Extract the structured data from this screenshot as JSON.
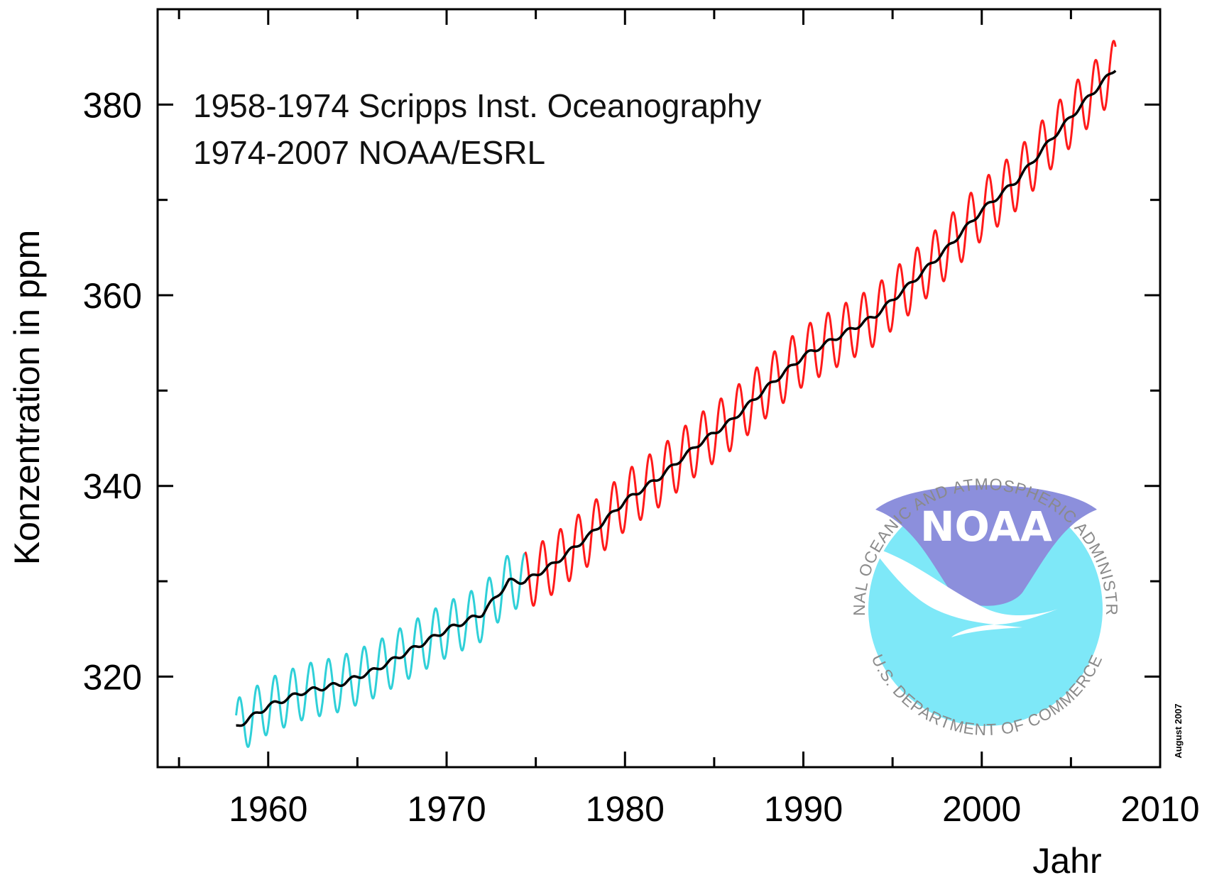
{
  "chart_data": {
    "type": "line",
    "xlabel": "Jahr",
    "ylabel": "Konzentration in ppm",
    "xlim": [
      1953.8,
      2010
    ],
    "ylim": [
      310.5,
      390
    ],
    "x_ticks": [
      1960,
      1970,
      1980,
      1990,
      2000,
      2010
    ],
    "y_ticks": [
      320,
      340,
      360,
      380
    ],
    "grid": false,
    "annotations": [
      "1958-1974 Scripps Inst. Oceanography",
      "1974-2007 NOAA/ESRL"
    ],
    "stamp": "August 2007",
    "series": [
      {
        "id": "scripps",
        "color": "#2fd0d8",
        "x_range": [
          1958.2,
          1974.4
        ],
        "trend_points": [
          [
            1958.2,
            314.7
          ],
          [
            1960,
            316.9
          ],
          [
            1962,
            318.4
          ],
          [
            1964,
            319.2
          ],
          [
            1966,
            320.7
          ],
          [
            1968,
            322.8
          ],
          [
            1970,
            324.9
          ],
          [
            1972,
            326.6
          ],
          [
            1973.5,
            330.0
          ],
          [
            1974.4,
            330.0
          ]
        ],
        "seasonal_amplitude": 2.9
      },
      {
        "id": "noaa",
        "color": "#ff1a1a",
        "x_range": [
          1974.4,
          2007.5
        ],
        "trend_points": [
          [
            1974.4,
            330.0
          ],
          [
            1976,
            331.8
          ],
          [
            1978,
            334.8
          ],
          [
            1980,
            338.4
          ],
          [
            1982,
            341.0
          ],
          [
            1984,
            344.2
          ],
          [
            1986,
            346.9
          ],
          [
            1988,
            350.4
          ],
          [
            1990,
            353.6
          ],
          [
            1992,
            355.7
          ],
          [
            1994,
            357.8
          ],
          [
            1996,
            361.2
          ],
          [
            1998,
            364.8
          ],
          [
            2000,
            368.9
          ],
          [
            2002,
            372.1
          ],
          [
            2004,
            376.6
          ],
          [
            2006,
            380.8
          ],
          [
            2007.5,
            383.8
          ]
        ],
        "seasonal_amplitude": 3.1
      },
      {
        "id": "trend",
        "color": "#000000",
        "x_range": [
          1958.2,
          2007.5
        ],
        "points": [
          [
            1958.2,
            314.7
          ],
          [
            1960,
            316.9
          ],
          [
            1962,
            318.4
          ],
          [
            1964,
            319.2
          ],
          [
            1966,
            320.7
          ],
          [
            1968,
            322.8
          ],
          [
            1970,
            324.9
          ],
          [
            1972,
            326.6
          ],
          [
            1973.5,
            330.0
          ],
          [
            1974.4,
            330.0
          ],
          [
            1976,
            331.8
          ],
          [
            1978,
            334.8
          ],
          [
            1980,
            338.4
          ],
          [
            1982,
            341.0
          ],
          [
            1984,
            344.2
          ],
          [
            1986,
            346.9
          ],
          [
            1988,
            350.4
          ],
          [
            1990,
            353.6
          ],
          [
            1992,
            355.7
          ],
          [
            1994,
            357.8
          ],
          [
            1996,
            361.2
          ],
          [
            1998,
            364.8
          ],
          [
            2000,
            368.9
          ],
          [
            2002,
            372.1
          ],
          [
            2004,
            376.6
          ],
          [
            2006,
            380.8
          ],
          [
            2007.5,
            383.8
          ]
        ]
      }
    ]
  },
  "logo": {
    "wordmark": "NOAA",
    "ring_top": "NATIONAL OCEANIC AND ATMOSPHERIC ADMINISTRATION",
    "ring_bottom": "U.S. DEPARTMENT OF COMMERCE",
    "colors": {
      "sky": "#8c8fdc",
      "sea": "#7ee8f8",
      "ring_text": "#8a8a8a"
    }
  }
}
